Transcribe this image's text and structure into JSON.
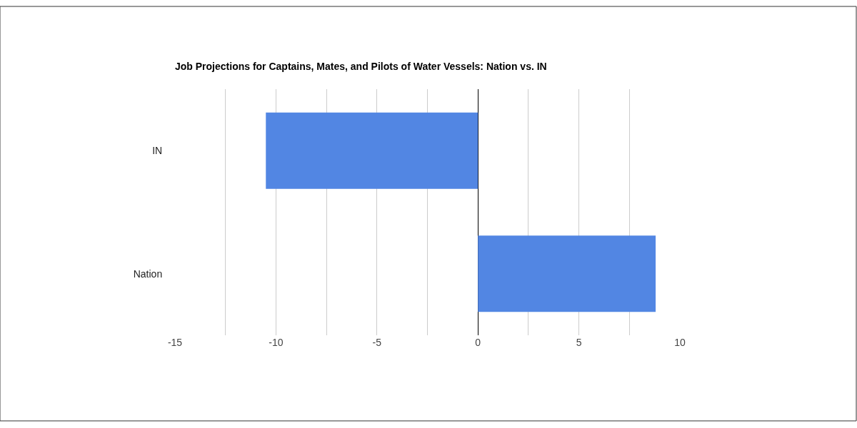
{
  "chart_data": {
    "type": "bar",
    "orientation": "horizontal",
    "title": "Job Projections for Captains, Mates, and Pilots of Water Vessels: Nation vs. IN",
    "categories": [
      "IN",
      "Nation"
    ],
    "values": [
      -10.5,
      8.8
    ],
    "color": "#5286e3",
    "xlim": [
      -15,
      10
    ],
    "xticks": [
      -15,
      {
        "value": -12.5,
        "label": null
      },
      -10,
      {
        "value": -7.5,
        "label": null
      },
      -5,
      {
        "value": -2.5,
        "label": null
      },
      0,
      {
        "value": 2.5,
        "label": null
      },
      5,
      {
        "value": 7.5,
        "label": null
      },
      10
    ],
    "grid": "x"
  }
}
